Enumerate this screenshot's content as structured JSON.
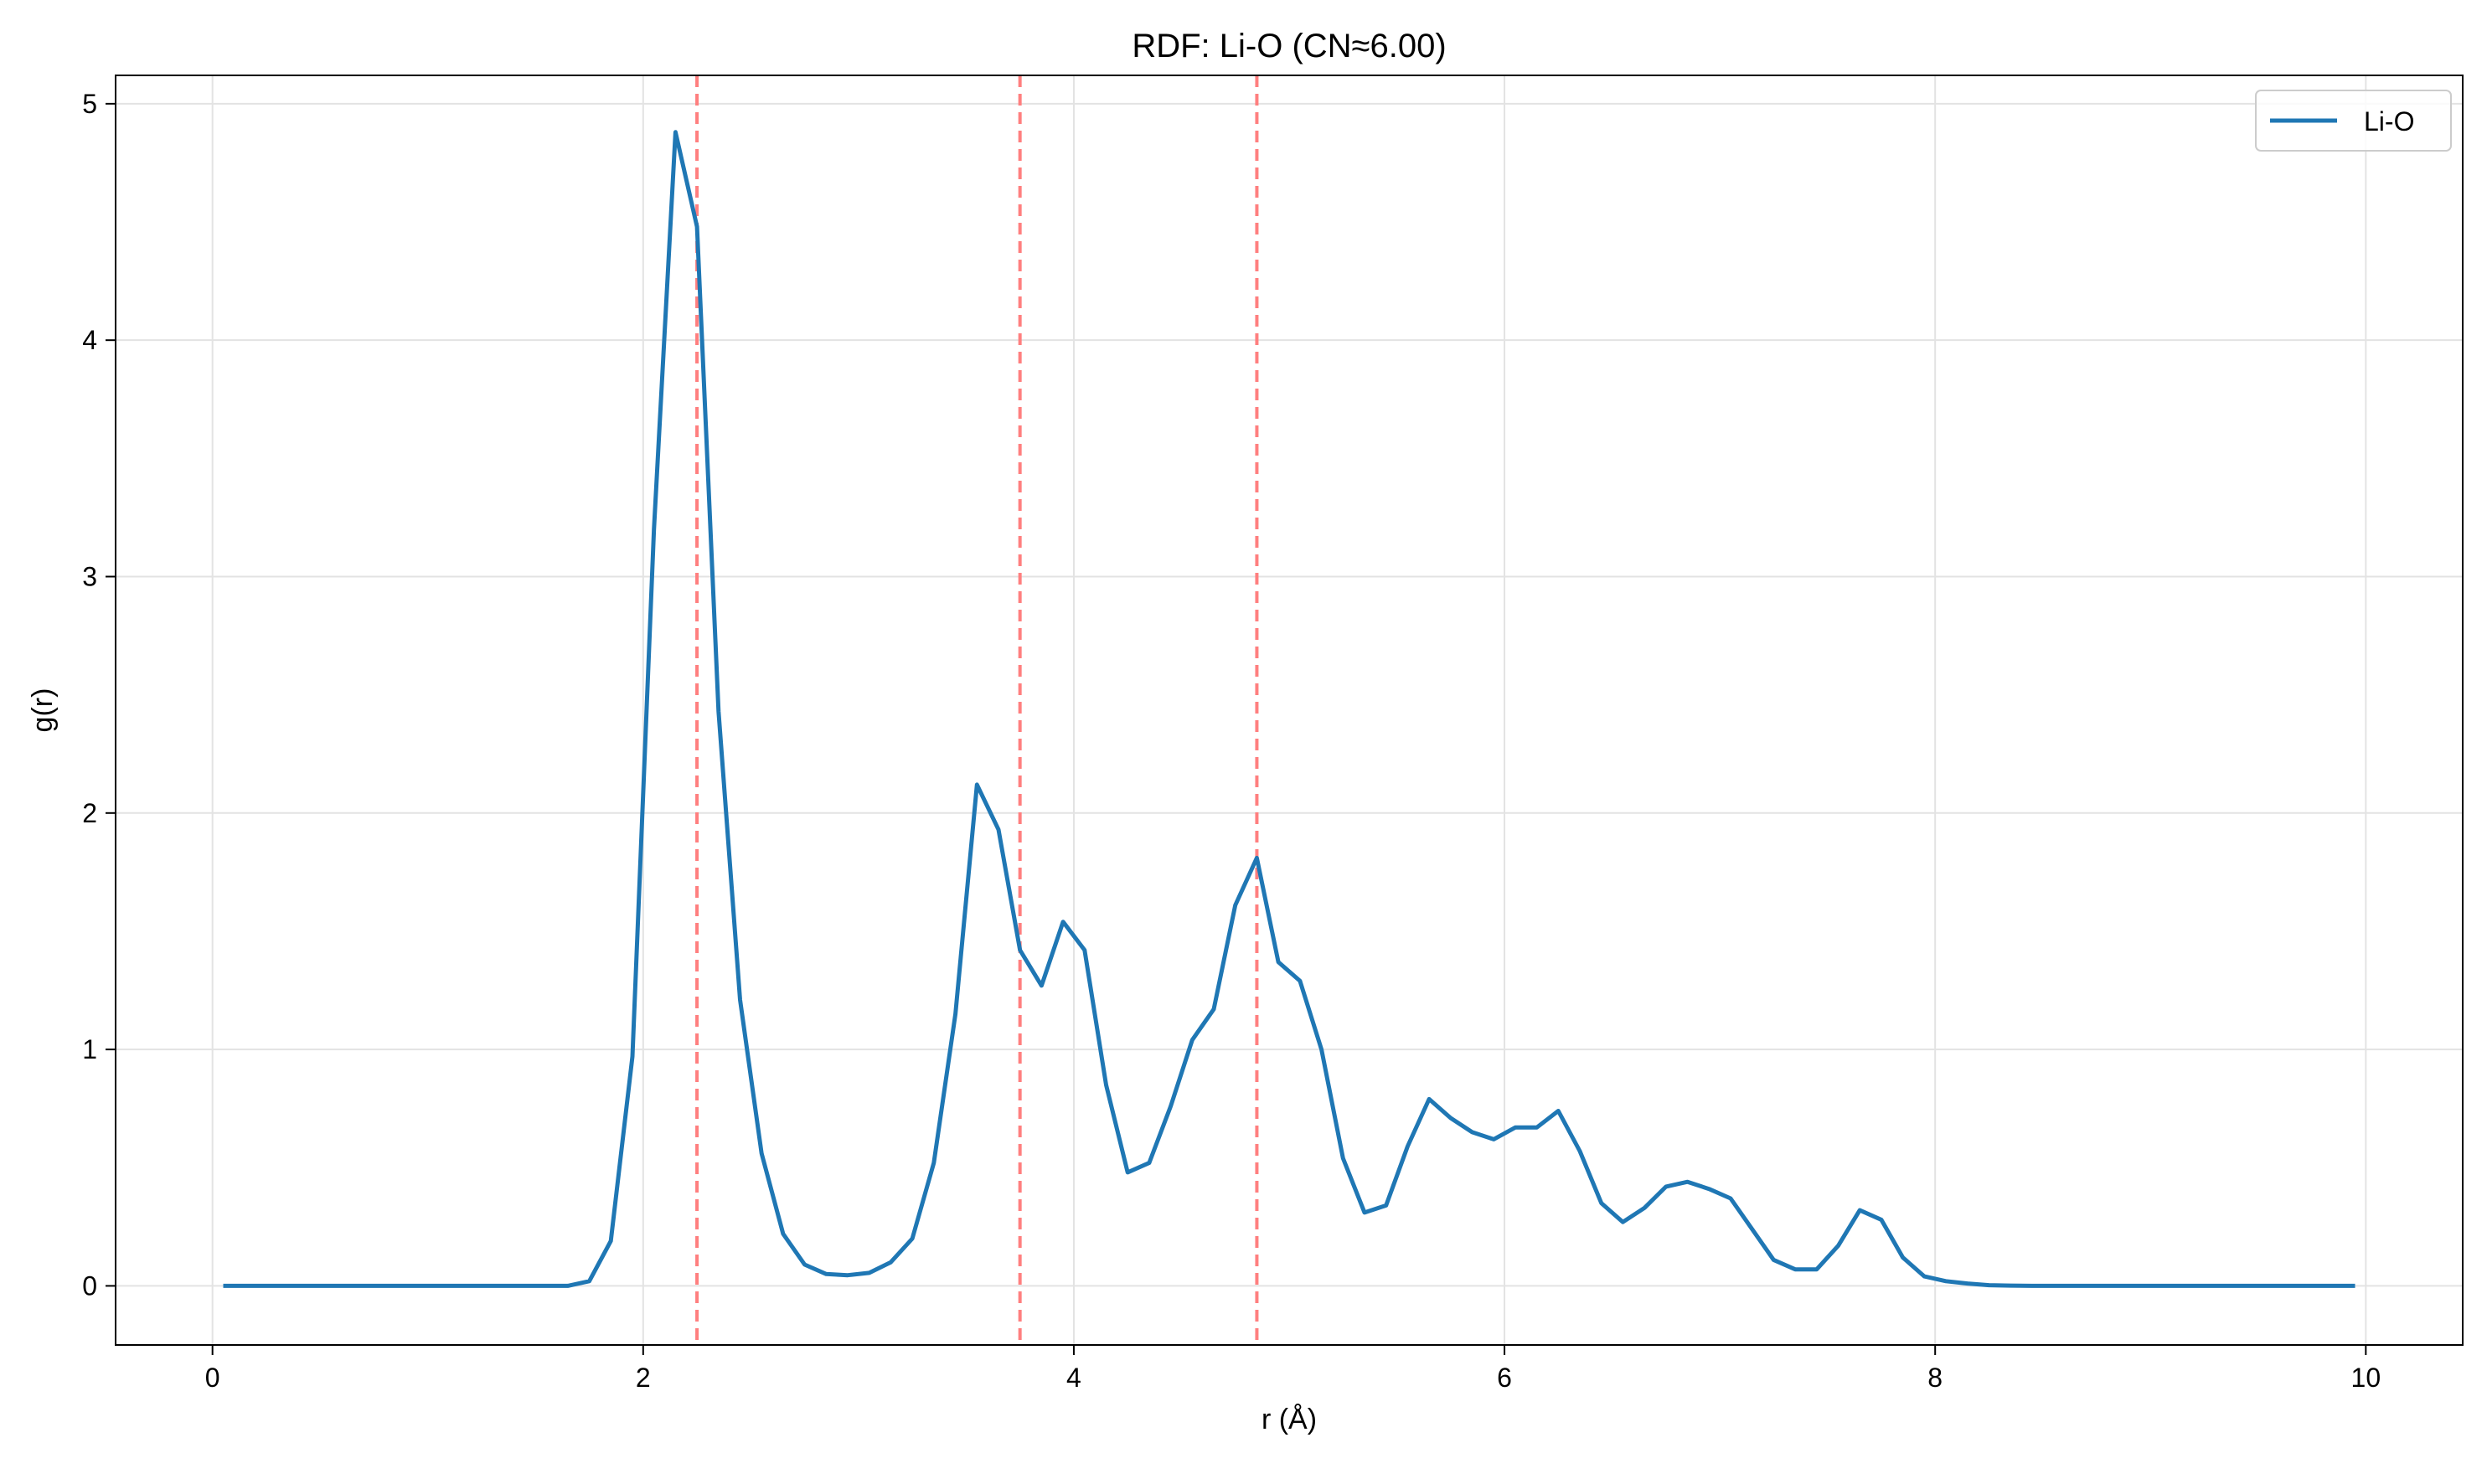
{
  "chart_data": {
    "type": "line",
    "title": "RDF: Li-O (CN≈6.00)",
    "xlabel": "r (Å)",
    "ylabel": "g(r)",
    "xlim": [
      -0.45,
      10.45
    ],
    "ylim": [
      -0.25,
      5.12
    ],
    "xticks": [
      0,
      2,
      4,
      6,
      8,
      10
    ],
    "yticks": [
      0,
      1,
      2,
      3,
      4,
      5
    ],
    "grid": true,
    "legend_position": "top-right",
    "series": [
      {
        "name": "Li-O",
        "color": "#1f77b4",
        "x": [
          0.05,
          0.15,
          0.25,
          0.35,
          0.45,
          0.55,
          0.65,
          0.75,
          0.85,
          0.95,
          1.05,
          1.15,
          1.25,
          1.35,
          1.45,
          1.55,
          1.65,
          1.75,
          1.85,
          1.95,
          2.05,
          2.15,
          2.25,
          2.35,
          2.45,
          2.55,
          2.65,
          2.75,
          2.85,
          2.95,
          3.05,
          3.15,
          3.25,
          3.35,
          3.45,
          3.55,
          3.65,
          3.75,
          3.85,
          3.95,
          4.05,
          4.15,
          4.25,
          4.35,
          4.45,
          4.55,
          4.65,
          4.75,
          4.85,
          4.95,
          5.05,
          5.15,
          5.25,
          5.35,
          5.45,
          5.55,
          5.65,
          5.75,
          5.85,
          5.95,
          6.05,
          6.15,
          6.25,
          6.35,
          6.45,
          6.55,
          6.65,
          6.75,
          6.85,
          6.95,
          7.05,
          7.15,
          7.25,
          7.35,
          7.45,
          7.55,
          7.65,
          7.75,
          7.85,
          7.95,
          8.05,
          8.15,
          8.25,
          8.35,
          8.45,
          8.55,
          8.65,
          8.75,
          8.85,
          8.95,
          9.05,
          9.15,
          9.25,
          9.35,
          9.45,
          9.55,
          9.65,
          9.75,
          9.85,
          9.95
        ],
        "y": [
          0,
          0,
          0,
          0,
          0,
          0,
          0,
          0,
          0,
          0,
          0,
          0,
          0,
          0,
          0,
          0,
          0,
          0.02,
          0.19,
          0.97,
          3.2,
          4.88,
          4.48,
          2.43,
          1.21,
          0.56,
          0.22,
          0.09,
          0.05,
          0.045,
          0.055,
          0.1,
          0.2,
          0.52,
          1.15,
          2.12,
          1.93,
          1.42,
          1.27,
          1.54,
          1.42,
          0.85,
          0.48,
          0.52,
          0.76,
          1.04,
          1.17,
          1.61,
          1.81,
          1.37,
          1.29,
          1.0,
          0.54,
          0.31,
          0.34,
          0.59,
          0.79,
          0.71,
          0.65,
          0.62,
          0.67,
          0.67,
          0.74,
          0.57,
          0.35,
          0.27,
          0.33,
          0.42,
          0.44,
          0.41,
          0.37,
          0.24,
          0.11,
          0.07,
          0.07,
          0.17,
          0.32,
          0.28,
          0.12,
          0.04,
          0.02,
          0.01,
          0.003,
          0.001,
          0,
          0,
          0,
          0,
          0,
          0,
          0,
          0,
          0,
          0,
          0,
          0,
          0,
          0,
          0,
          0
        ]
      }
    ],
    "reference_lines": {
      "color": "#ff7f7f",
      "style": "dashed",
      "x": [
        2.25,
        3.75,
        4.85
      ]
    },
    "legend_entries": [
      "Li-O"
    ]
  }
}
